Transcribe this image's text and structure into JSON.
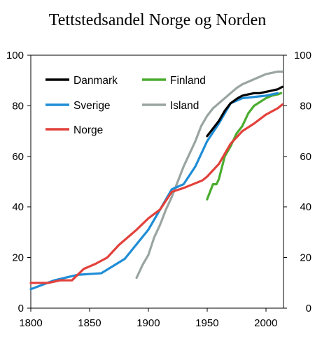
{
  "chart_data": {
    "type": "line",
    "title": "Tettstedsandel Norge og Norden",
    "xlabel": "",
    "ylabel": "",
    "xlim": [
      1800,
      2015
    ],
    "ylim": [
      0,
      100
    ],
    "x_ticks": [
      1800,
      1850,
      1900,
      1950,
      2000
    ],
    "y_ticks": [
      0,
      20,
      40,
      60,
      80,
      100
    ],
    "y_axis_right": true,
    "grid": false,
    "legend_position": "top-left",
    "series": [
      {
        "name": "Danmark",
        "color": "#000000",
        "x": [
          1950,
          1955,
          1960,
          1965,
          1970,
          1976,
          1980,
          1985,
          1990,
          1995,
          2000,
          2005,
          2010,
          2014
        ],
        "y": [
          68,
          71,
          74,
          78,
          81,
          83,
          84,
          84.5,
          85,
          85,
          85.5,
          86,
          86.5,
          87.5
        ]
      },
      {
        "name": "Sverige",
        "color": "#1f8dd6",
        "x": [
          1800,
          1820,
          1840,
          1860,
          1880,
          1900,
          1910,
          1920,
          1930,
          1940,
          1950,
          1960,
          1970,
          1980,
          1990,
          2000,
          2010
        ],
        "y": [
          7.5,
          11,
          13.2,
          13.8,
          19.5,
          31,
          39,
          47,
          49,
          56,
          66,
          73,
          81,
          83,
          83.5,
          84,
          85
        ]
      },
      {
        "name": "Norge",
        "color": "#e2413b",
        "x": [
          1800,
          1815,
          1825,
          1835,
          1845,
          1855,
          1865,
          1875,
          1890,
          1900,
          1910,
          1920,
          1930,
          1946,
          1950,
          1960,
          1970,
          1980,
          1990,
          2000,
          2010,
          2014
        ],
        "y": [
          10,
          10,
          11,
          11,
          15.5,
          17.5,
          20,
          25,
          31,
          35.5,
          39,
          46,
          47.5,
          50.5,
          52,
          57,
          65,
          70,
          73,
          76.5,
          79,
          80.5
        ]
      },
      {
        "name": "Finland",
        "color": "#4aac2e",
        "x": [
          1950,
          1955,
          1958,
          1960,
          1965,
          1970,
          1975,
          1980,
          1985,
          1990,
          2000,
          2005,
          2010,
          2013
        ],
        "y": [
          43,
          49,
          49,
          51,
          60,
          64,
          69,
          72,
          77,
          80,
          83,
          84,
          84.5,
          85
        ]
      },
      {
        "name": "Island",
        "color": "#9aa5a1",
        "x": [
          1890,
          1895,
          1900,
          1905,
          1910,
          1915,
          1920,
          1925,
          1930,
          1935,
          1940,
          1945,
          1950,
          1955,
          1960,
          1965,
          1970,
          1975,
          1980,
          1985,
          1990,
          1995,
          2000,
          2005,
          2010,
          2014
        ],
        "y": [
          12,
          17,
          21,
          28,
          33,
          39,
          44,
          50,
          56,
          61,
          66,
          72,
          76,
          79,
          81,
          83,
          85,
          87,
          88.5,
          89.5,
          90.5,
          91.5,
          92.5,
          93,
          93.5,
          93.5
        ]
      }
    ]
  }
}
